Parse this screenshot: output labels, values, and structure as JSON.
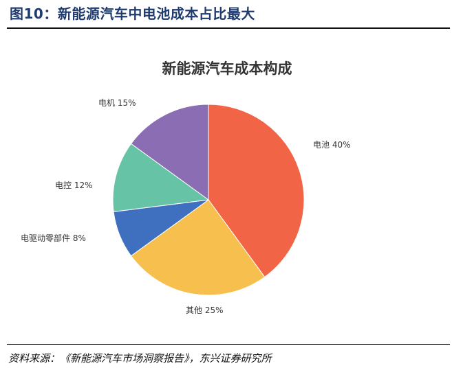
{
  "figure": {
    "title": "图10：新能源汽车中电池成本占比最大",
    "source": "资料来源：《新能源汽车市场洞察报告》，东兴证券研究所"
  },
  "chart_data": {
    "type": "pie",
    "title": "新能源汽车成本构成",
    "slices": [
      {
        "label": "电池 40%",
        "category": "电池",
        "value": 40,
        "color": "#f26446"
      },
      {
        "label": "其他 25%",
        "category": "其他",
        "value": 25,
        "color": "#f6bf4e"
      },
      {
        "label": "电驱动零部件 8%",
        "category": "电驱动零部件",
        "value": 8,
        "color": "#3f6fbf"
      },
      {
        "label": "电控 12%",
        "category": "电控",
        "value": 12,
        "color": "#66c3a5"
      },
      {
        "label": "电机 15%",
        "category": "电机",
        "value": 15,
        "color": "#8a6db3"
      }
    ],
    "start": "12 o'clock",
    "direction": "clockwise",
    "legend": "none"
  }
}
